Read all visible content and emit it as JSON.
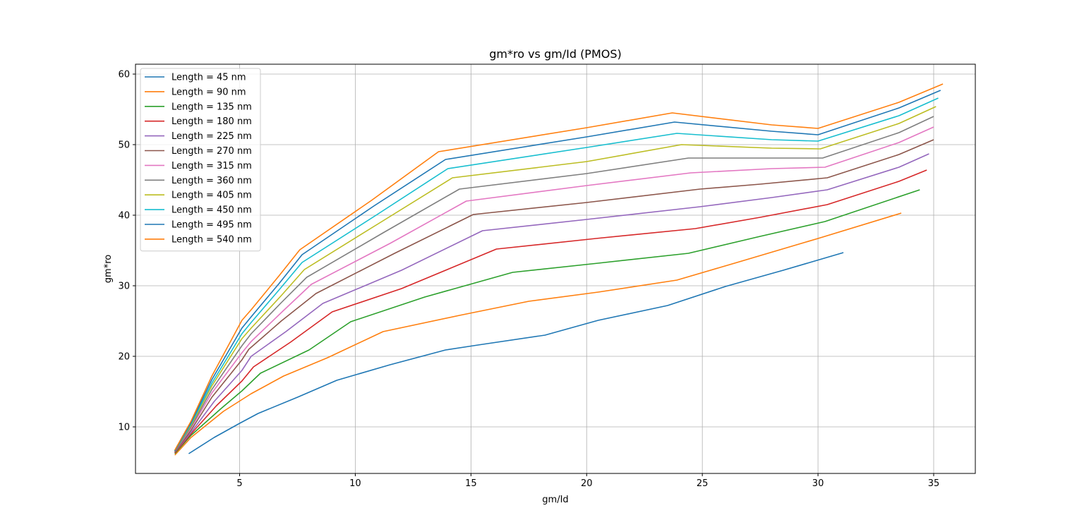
{
  "chart_data": {
    "type": "line",
    "title": "gm*ro vs gm/Id (PMOS)",
    "xlabel": "gm/Id",
    "ylabel": "gm*ro",
    "xlim": [
      0.5,
      36.8
    ],
    "ylim": [
      3.4,
      61.4
    ],
    "xticks": [
      5,
      10,
      15,
      20,
      25,
      30,
      35
    ],
    "yticks": [
      10,
      20,
      30,
      40,
      50,
      60
    ],
    "grid": true,
    "legend_position": "upper-left",
    "series": [
      {
        "name": "Length = 45 nm",
        "color": "#1f77b4",
        "x": [
          2.8,
          3.9,
          5.0,
          5.8,
          7.5,
          9.2,
          11.5,
          13.9,
          15.3,
          18.2,
          20.5,
          23.5,
          26.0,
          28.5,
          31.1
        ],
        "y": [
          6.2,
          8.5,
          10.5,
          11.9,
          14.2,
          16.6,
          18.8,
          20.9,
          21.6,
          23.0,
          25.1,
          27.2,
          29.9,
          32.2,
          34.7
        ]
      },
      {
        "name": "Length = 90 nm",
        "color": "#ff7f0e",
        "x": [
          2.2,
          2.9,
          4.3,
          5.5,
          6.9,
          8.8,
          11.2,
          14.5,
          17.5,
          20.5,
          23.9,
          26.5,
          30.0,
          33.6
        ],
        "y": [
          6.0,
          8.5,
          12.2,
          14.7,
          17.2,
          19.8,
          23.5,
          25.8,
          27.8,
          29.1,
          30.8,
          33.3,
          36.7,
          40.3
        ]
      },
      {
        "name": "Length = 135 nm",
        "color": "#2ca02c",
        "x": [
          2.2,
          2.9,
          4.2,
          5.1,
          5.9,
          8.0,
          9.8,
          13.0,
          16.8,
          20.5,
          24.4,
          27.5,
          30.3,
          34.4
        ],
        "y": [
          6.2,
          8.8,
          12.6,
          15.1,
          17.6,
          20.9,
          24.9,
          28.4,
          31.9,
          33.2,
          34.6,
          37.0,
          39.1,
          43.6
        ]
      },
      {
        "name": "Length = 180 nm",
        "color": "#d62728",
        "x": [
          2.2,
          2.9,
          4.0,
          5.1,
          5.6,
          7.2,
          9.0,
          12.0,
          16.1,
          20.4,
          24.7,
          27.5,
          30.4,
          33.5,
          34.7
        ],
        "y": [
          6.3,
          9.0,
          13.0,
          16.5,
          18.5,
          22.0,
          26.3,
          29.6,
          35.2,
          36.7,
          38.1,
          39.7,
          41.5,
          44.8,
          46.4
        ]
      },
      {
        "name": "Length = 225 nm",
        "color": "#9467bd",
        "x": [
          2.2,
          2.9,
          3.9,
          5.1,
          5.5,
          7.0,
          8.6,
          12.0,
          15.5,
          20.0,
          24.9,
          28.0,
          30.4,
          33.5,
          34.8
        ],
        "y": [
          6.4,
          9.2,
          13.6,
          18.0,
          20.0,
          23.5,
          27.5,
          32.2,
          37.8,
          39.4,
          41.2,
          42.5,
          43.6,
          46.8,
          48.7
        ]
      },
      {
        "name": "Length = 270 nm",
        "color": "#8c564b",
        "x": [
          2.2,
          2.9,
          3.8,
          5.1,
          5.4,
          6.8,
          8.3,
          11.7,
          15.1,
          20.0,
          24.9,
          27.5,
          30.4,
          33.5,
          35.0
        ],
        "y": [
          6.4,
          9.5,
          14.2,
          19.5,
          21.0,
          25.0,
          28.9,
          34.6,
          40.1,
          41.8,
          43.7,
          44.4,
          45.3,
          48.6,
          50.7
        ]
      },
      {
        "name": "Length = 315 nm",
        "color": "#e377c2",
        "x": [
          2.2,
          2.9,
          3.8,
          5.1,
          5.5,
          6.9,
          8.1,
          11.5,
          14.8,
          20.0,
          24.5,
          28.0,
          30.3,
          33.5,
          35.0
        ],
        "y": [
          6.5,
          9.8,
          14.8,
          20.5,
          22.1,
          26.5,
          30.2,
          36.0,
          42.0,
          44.2,
          46.0,
          46.6,
          46.8,
          50.3,
          52.5
        ]
      },
      {
        "name": "Length = 360 nm",
        "color": "#7f7f7f",
        "x": [
          2.2,
          2.9,
          3.8,
          5.1,
          5.5,
          6.8,
          7.9,
          11.2,
          14.5,
          20.0,
          24.4,
          28.0,
          30.2,
          33.5,
          35.0
        ],
        "y": [
          6.5,
          10.0,
          15.3,
          21.5,
          23.2,
          27.6,
          31.2,
          37.5,
          43.7,
          45.9,
          48.1,
          48.1,
          48.1,
          51.7,
          54.0
        ]
      },
      {
        "name": "Length = 405 nm",
        "color": "#bcbd22",
        "x": [
          2.2,
          2.9,
          3.8,
          5.1,
          5.5,
          6.8,
          7.8,
          11.0,
          14.2,
          20.0,
          24.1,
          28.0,
          30.1,
          33.5,
          35.1
        ],
        "y": [
          6.6,
          10.2,
          15.8,
          22.5,
          24.0,
          28.6,
          32.3,
          38.8,
          45.3,
          47.6,
          50.0,
          49.5,
          49.4,
          53.0,
          55.4
        ]
      },
      {
        "name": "Length = 450 nm",
        "color": "#17becf",
        "x": [
          2.2,
          2.9,
          3.8,
          5.1,
          5.5,
          6.7,
          7.7,
          10.9,
          14.0,
          20.0,
          23.9,
          28.0,
          30.0,
          33.5,
          35.2
        ],
        "y": [
          6.6,
          10.4,
          16.2,
          23.2,
          24.8,
          29.4,
          33.3,
          40.0,
          46.6,
          49.6,
          51.6,
          50.7,
          50.5,
          54.1,
          56.6
        ]
      },
      {
        "name": "Length = 495 nm",
        "color": "#1f77b4",
        "x": [
          2.2,
          2.9,
          3.8,
          5.1,
          5.5,
          6.7,
          7.7,
          10.8,
          13.9,
          20.0,
          23.8,
          28.0,
          30.0,
          33.5,
          35.3
        ],
        "y": [
          6.6,
          10.6,
          16.7,
          24.0,
          25.6,
          30.3,
          34.4,
          41.3,
          47.9,
          51.1,
          53.2,
          51.9,
          51.4,
          55.2,
          57.7
        ]
      },
      {
        "name": "Length = 540 nm",
        "color": "#ff7f0e",
        "x": [
          2.2,
          2.9,
          3.8,
          5.1,
          5.5,
          6.7,
          7.6,
          10.7,
          13.6,
          20.0,
          23.7,
          28.0,
          30.0,
          33.5,
          35.4
        ],
        "y": [
          6.7,
          10.8,
          17.2,
          25.1,
          26.6,
          31.4,
          35.1,
          42.1,
          49.0,
          52.4,
          54.5,
          52.8,
          52.3,
          56.0,
          58.6
        ]
      }
    ]
  }
}
